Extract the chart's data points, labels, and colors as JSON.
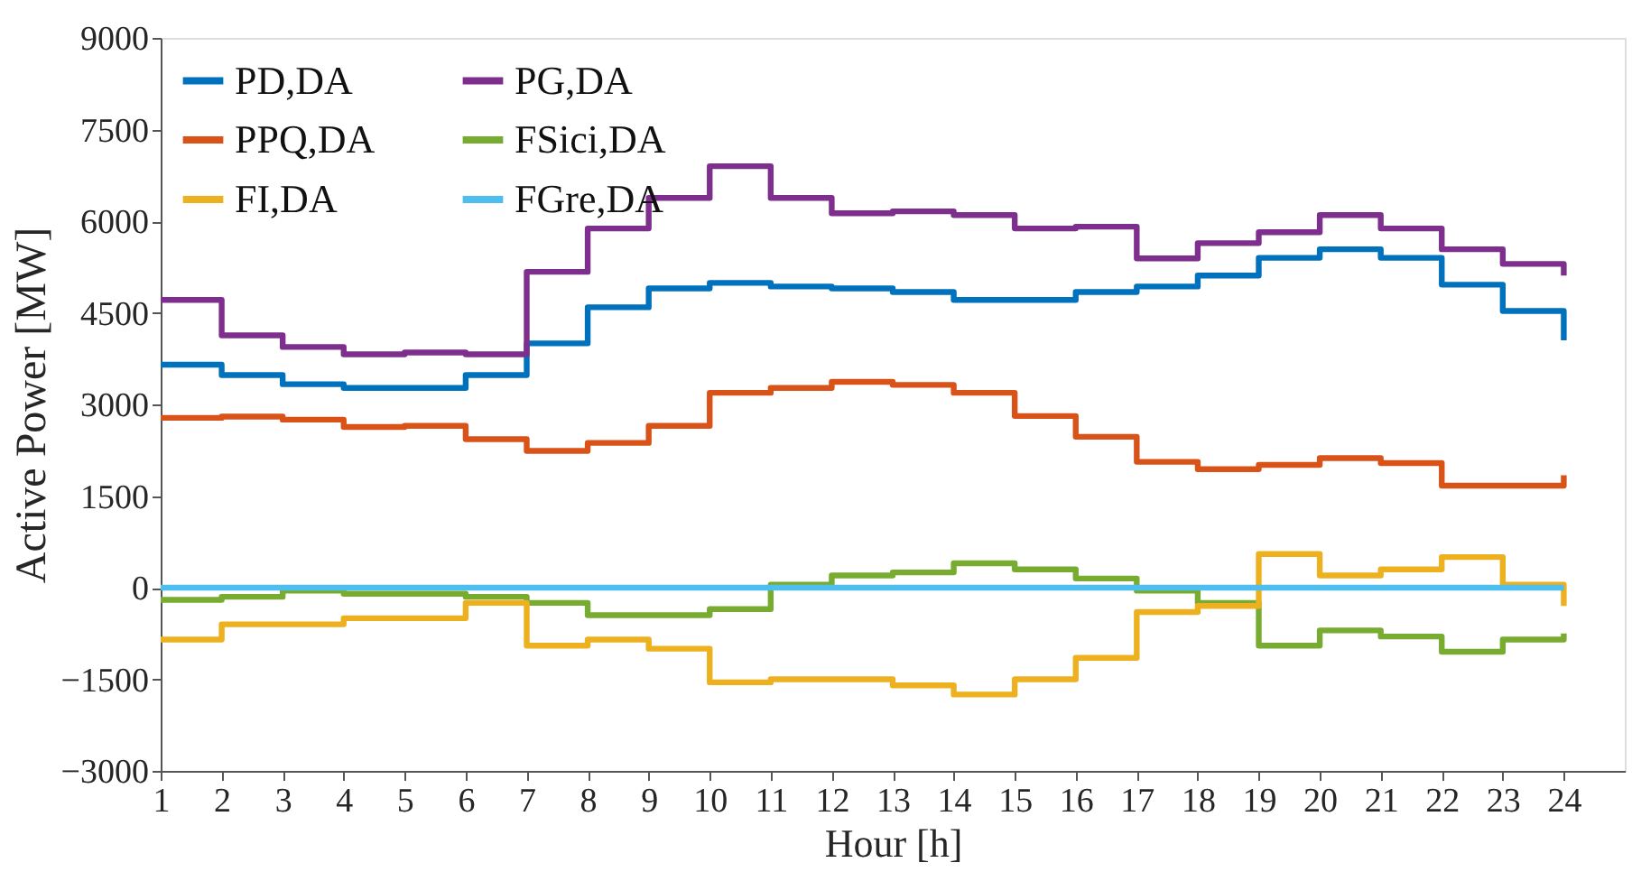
{
  "chart_data": {
    "type": "step",
    "xlabel": "Hour [h]",
    "ylabel": "Active Power [MW]",
    "x": [
      1,
      2,
      3,
      4,
      5,
      6,
      7,
      8,
      9,
      10,
      11,
      12,
      13,
      14,
      15,
      16,
      17,
      18,
      19,
      20,
      21,
      22,
      23,
      24
    ],
    "xlim": [
      1,
      25
    ],
    "xticks": [
      1,
      2,
      3,
      4,
      5,
      6,
      7,
      8,
      9,
      10,
      11,
      12,
      13,
      14,
      15,
      16,
      17,
      18,
      19,
      20,
      21,
      22,
      23,
      24
    ],
    "ylim": [
      -3000,
      9000
    ],
    "yticks": [
      -3000,
      -1500,
      0,
      1500,
      3000,
      4500,
      6000,
      7500,
      9000
    ],
    "grid": false,
    "legend": "top left",
    "line_style": "solid",
    "marker": "none",
    "series": [
      {
        "name": "PD,DA",
        "color": "#0072bd",
        "values": [
          3650,
          3480,
          3330,
          3270,
          3270,
          3480,
          4000,
          4590,
          4900,
          4990,
          4930,
          4900,
          4840,
          4710,
          4710,
          4840,
          4930,
          5110,
          5400,
          5540,
          5400,
          4960,
          4530,
          4050
        ]
      },
      {
        "name": "PG,DA",
        "color": "#7e2f8e",
        "values": [
          4710,
          4130,
          3940,
          3820,
          3850,
          3820,
          5170,
          5880,
          6380,
          6900,
          6380,
          6130,
          6160,
          6100,
          5880,
          5910,
          5390,
          5640,
          5820,
          6100,
          5880,
          5540,
          5300,
          5110
        ]
      },
      {
        "name": "PPQ,DA",
        "color": "#d95319",
        "values": [
          2780,
          2800,
          2750,
          2630,
          2650,
          2430,
          2240,
          2370,
          2650,
          3190,
          3270,
          3370,
          3320,
          3190,
          2810,
          2470,
          2060,
          1940,
          2010,
          2120,
          2040,
          1670,
          1670,
          1840
        ]
      },
      {
        "name": "FSici,DA",
        "color": "#77ac30",
        "values": [
          -200,
          -150,
          -50,
          -100,
          -100,
          -150,
          -250,
          -450,
          -450,
          -350,
          50,
          200,
          250,
          400,
          300,
          150,
          -50,
          -250,
          -950,
          -700,
          -800,
          -1050,
          -850,
          -750
        ]
      },
      {
        "name": "FI,DA",
        "color": "#edb120",
        "values": [
          -850,
          -600,
          -600,
          -500,
          -500,
          -250,
          -950,
          -850,
          -1000,
          -1550,
          -1500,
          -1500,
          -1600,
          -1750,
          -1500,
          -1150,
          -400,
          -300,
          550,
          200,
          300,
          500,
          50,
          -300
        ]
      },
      {
        "name": "FGre,DA",
        "color": "#4dbeee",
        "values": [
          0,
          0,
          0,
          0,
          0,
          0,
          0,
          0,
          0,
          0,
          0,
          0,
          0,
          0,
          0,
          0,
          0,
          0,
          0,
          0,
          0,
          0,
          0,
          0
        ]
      }
    ]
  }
}
